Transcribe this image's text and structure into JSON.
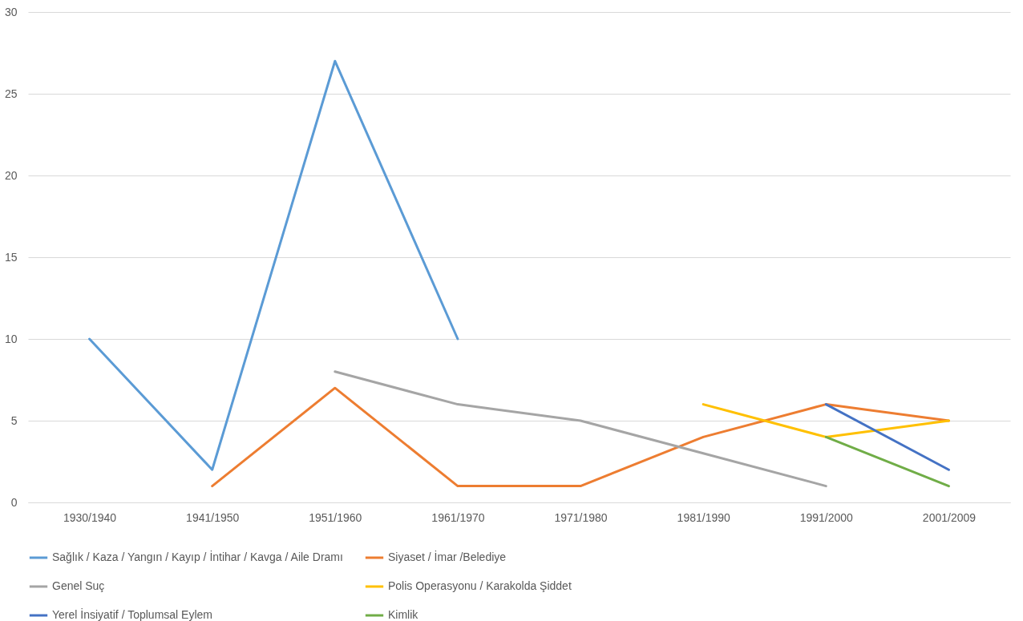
{
  "chart_data": {
    "type": "line",
    "categories": [
      "1930/1940",
      "1941/1950",
      "1951/1960",
      "1961/1970",
      "1971/1980",
      "1981/1990",
      "1991/2000",
      "2001/2009"
    ],
    "series": [
      {
        "name": "Sağlık / Kaza / Yangın / Kayıp / İntihar / Kavga / Aile Dramı",
        "color": "#5b9bd5",
        "values": [
          10,
          2,
          27,
          10,
          null,
          null,
          null,
          null
        ]
      },
      {
        "name": "Siyaset / İmar /Belediye",
        "color": "#ed7d31",
        "values": [
          null,
          1,
          7,
          1,
          1,
          4,
          6,
          5
        ]
      },
      {
        "name": "Genel Suç",
        "color": "#a5a5a5",
        "values": [
          null,
          null,
          8,
          6,
          5,
          3,
          1,
          null
        ]
      },
      {
        "name": "Polis Operasyonu / Karakolda Şiddet",
        "color": "#ffc000",
        "values": [
          null,
          null,
          null,
          null,
          null,
          6,
          4,
          5
        ]
      },
      {
        "name": "Yerel  İnsiyatif / Toplumsal Eylem",
        "color": "#4472c4",
        "values": [
          null,
          null,
          null,
          null,
          null,
          null,
          6,
          2
        ]
      },
      {
        "name": "Kimlik",
        "color": "#70ad47",
        "values": [
          null,
          null,
          null,
          null,
          null,
          null,
          4,
          1
        ]
      }
    ],
    "ylim": [
      0,
      30
    ],
    "yticks": [
      0,
      5,
      10,
      15,
      20,
      25,
      30
    ],
    "grid": "y",
    "legend": "bottom",
    "marker": "none",
    "line_style": "solid"
  }
}
